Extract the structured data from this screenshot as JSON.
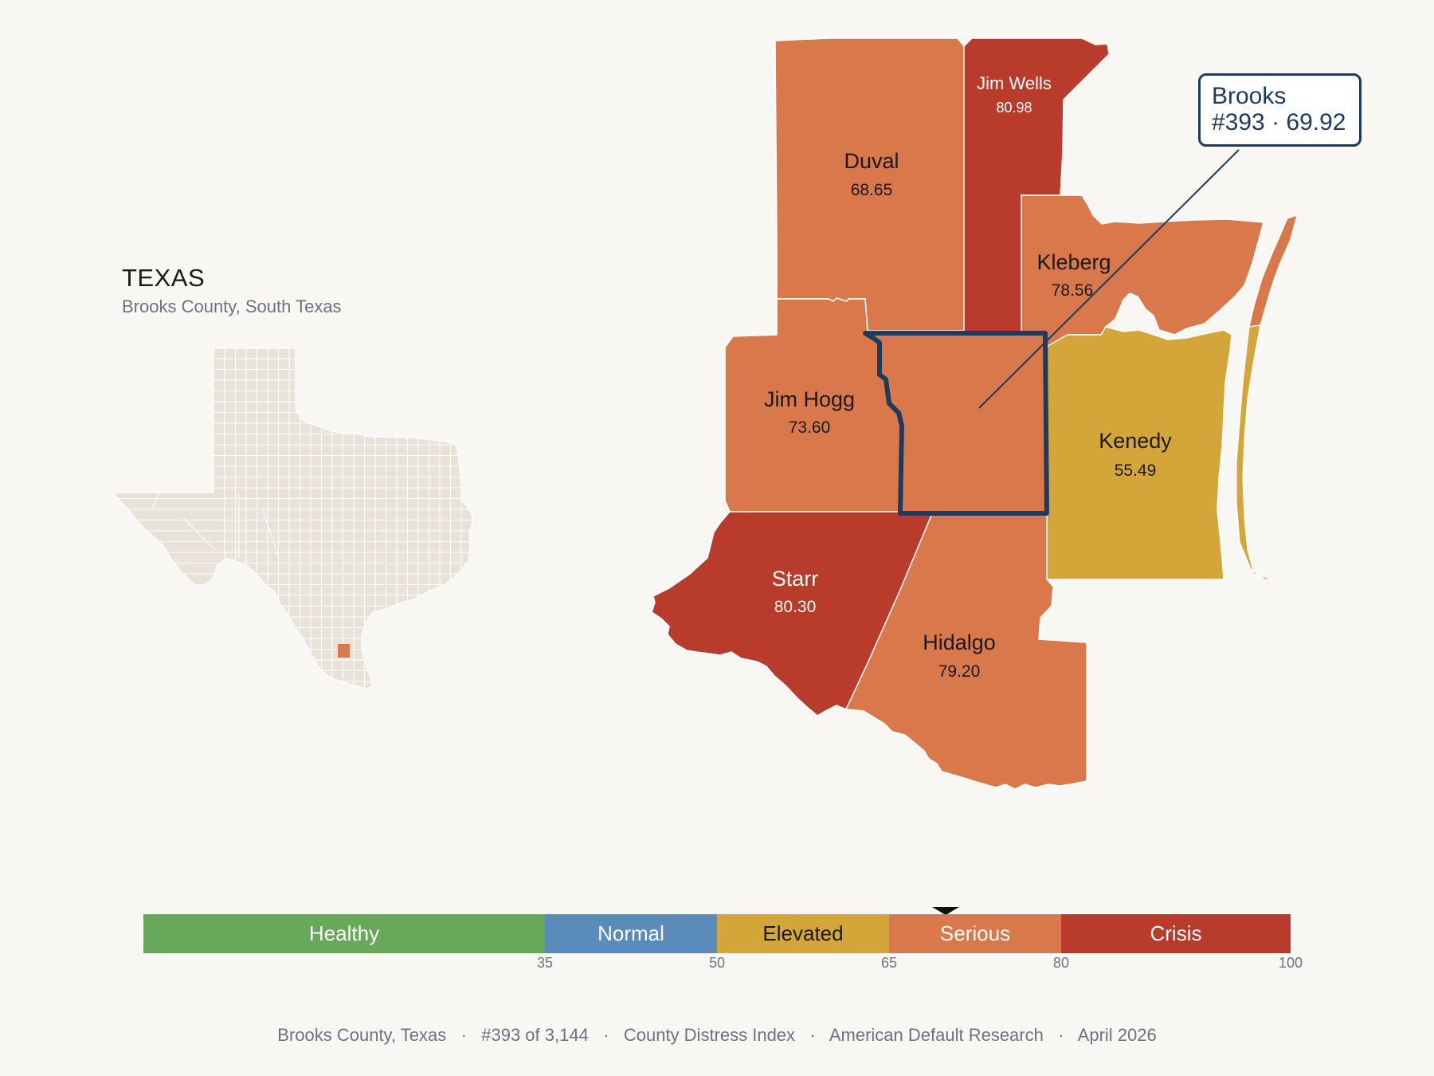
{
  "inset": {
    "title": "TEXAS",
    "subtitle": "Brooks County, South Texas",
    "land_color": "#e8e2d8",
    "highlight_color": "#d9784a"
  },
  "counties": [
    {
      "id": "duval",
      "name": "Duval",
      "value": "68.65",
      "color": "#d9784a",
      "label_color": "#1a1a1a"
    },
    {
      "id": "jim-wells",
      "name": "Jim Wells",
      "value": "80.98",
      "color": "#b93b2c",
      "label_color": "#ffffff"
    },
    {
      "id": "kleberg",
      "name": "Kleberg",
      "value": "78.56",
      "color": "#d9784a",
      "label_color": "#1a1a1a"
    },
    {
      "id": "jim-hogg",
      "name": "Jim Hogg",
      "value": "73.60",
      "color": "#d9784a",
      "label_color": "#1a1a1a"
    },
    {
      "id": "kenedy",
      "name": "Kenedy",
      "value": "55.49",
      "color": "#d4a63a",
      "label_color": "#1a1a1a"
    },
    {
      "id": "starr",
      "name": "Starr",
      "value": "80.30",
      "color": "#b93b2c",
      "label_color": "#ffffff"
    },
    {
      "id": "hidalgo",
      "name": "Hidalgo",
      "value": "79.20",
      "color": "#d9784a",
      "label_color": "#1a1a1a"
    },
    {
      "id": "brooks",
      "name": "Brooks",
      "value": "69.92",
      "color": "#d9784a",
      "outline_color": "#1f3a5f"
    }
  ],
  "callout": {
    "line1": "Brooks",
    "line2": "#393 · 69.92"
  },
  "scale": {
    "segments": [
      {
        "label": "Healthy",
        "from": 0,
        "to": 35,
        "color": "#67a85a",
        "text_color": "#ffffff"
      },
      {
        "label": "Normal",
        "from": 35,
        "to": 50,
        "color": "#5b8bba",
        "text_color": "#ffffff"
      },
      {
        "label": "Elevated",
        "from": 50,
        "to": 65,
        "color": "#d4a63a",
        "text_color": "#1a1a1a"
      },
      {
        "label": "Serious",
        "from": 65,
        "to": 80,
        "color": "#d9784a",
        "text_color": "#ffffff"
      },
      {
        "label": "Crisis",
        "from": 80,
        "to": 100,
        "color": "#b93b2c",
        "text_color": "#ffffff"
      }
    ],
    "ticks": [
      "35",
      "50",
      "65",
      "80",
      "100"
    ],
    "marker_value": 69.92
  },
  "footer": {
    "county": "Brooks County, Texas",
    "rank": "#393 of 3,144",
    "index": "County Distress Index",
    "org": "American Default Research",
    "date": "April 2026",
    "sep": "·"
  }
}
